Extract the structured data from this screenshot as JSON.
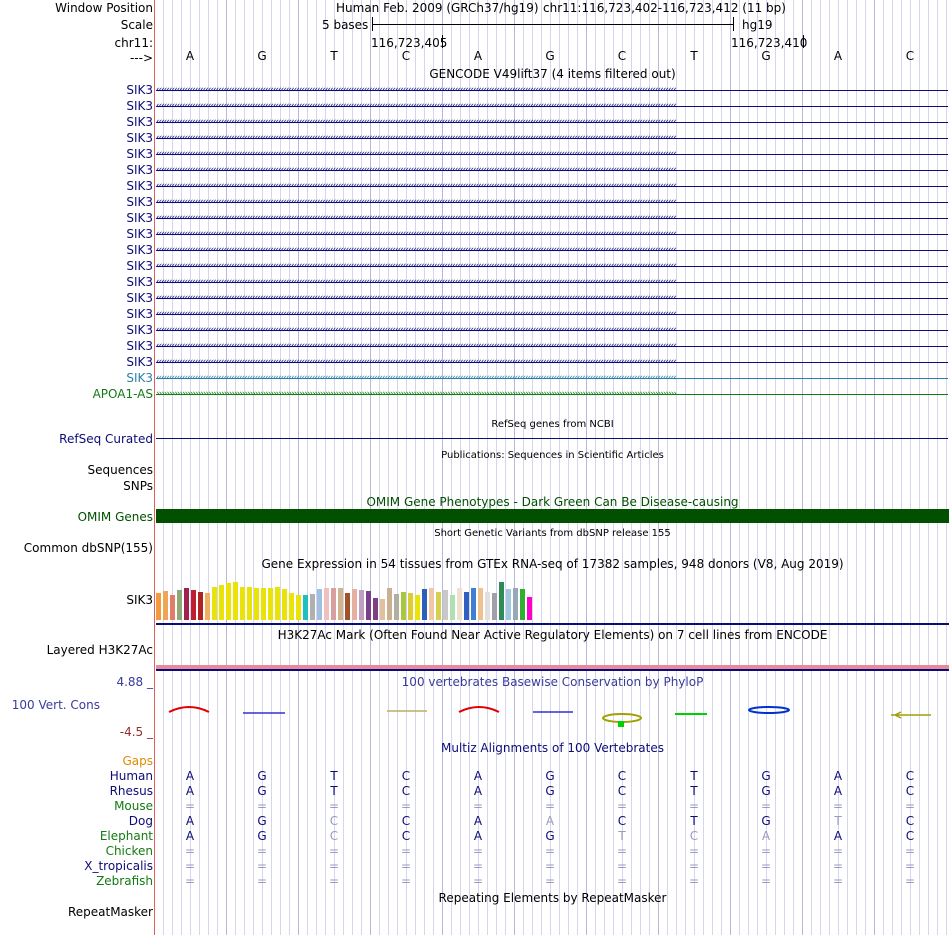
{
  "header": {
    "window_position_label": "Window Position",
    "scale_label": "Scale",
    "chrom_label": "chr11:",
    "strand_label": "--->",
    "assembly": "Human Feb. 2009 (GRCh37/hg19)",
    "position": "chr11:116,723,402-116,723,412 (11 bp)",
    "scale_text": "5 bases",
    "db": "hg19",
    "coord_left": "116,723,405",
    "coord_right": "116,723,410"
  },
  "bases": [
    "A",
    "G",
    "T",
    "C",
    "A",
    "G",
    "C",
    "T",
    "G",
    "A",
    "C"
  ],
  "gencode": {
    "title": "GENCODE V49lift37 (4 items filtered out)",
    "genes": [
      "SIK3",
      "SIK3",
      "SIK3",
      "SIK3",
      "SIK3",
      "SIK3",
      "SIK3",
      "SIK3",
      "SIK3",
      "SIK3",
      "SIK3",
      "SIK3",
      "SIK3",
      "SIK3",
      "SIK3",
      "SIK3",
      "SIK3",
      "SIK3",
      "SIK3"
    ],
    "apoa_gene": "APOA1-AS",
    "gene_color": "#0c0c78",
    "light_color": "#2b7fa8",
    "apoa_color": "#127a12"
  },
  "refseq": {
    "label": "RefSeq Curated",
    "title": "RefSeq genes from NCBI"
  },
  "publications": {
    "title": "Publications: Sequences in Scientific Articles",
    "label1": "Sequences",
    "label2": "SNPs"
  },
  "omim": {
    "title": "OMIM Gene Phenotypes - Dark Green Can Be Disease-causing",
    "label": "OMIM Genes",
    "color": "#005000"
  },
  "dbsnp": {
    "title": "Short Genetic Variants from dbSNP release 155",
    "label": "Common dbSNP(155)"
  },
  "gtex": {
    "title": "Gene Expression in 54 tissues from GTEx RNA-seq of 17382 samples, 948 donors (V8, Aug 2019)",
    "label": "SIK3",
    "levels": [
      0.56,
      0.6,
      0.52,
      0.62,
      0.65,
      0.62,
      0.57,
      0.56,
      0.68,
      0.72,
      0.75,
      0.78,
      0.68,
      0.67,
      0.66,
      0.66,
      0.66,
      0.67,
      0.64,
      0.55,
      0.52,
      0.52,
      0.54,
      0.63,
      0.66,
      0.66,
      0.65,
      0.55,
      0.64,
      0.62,
      0.6,
      0.44,
      0.42,
      0.66,
      0.54,
      0.57,
      0.56,
      0.52,
      0.64,
      0.66,
      0.57,
      0.62,
      0.52,
      0.66,
      0.58,
      0.65,
      0.66,
      0.57,
      0.56,
      0.78,
      0.63,
      0.66,
      0.63,
      0.47
    ],
    "colors": [
      "#f39a3c",
      "#f0a456",
      "#e07d6a",
      "#8ea878",
      "#a02050",
      "#be1e2d",
      "#b22222",
      "#f0b060",
      "#e9e30a",
      "#e9e30a",
      "#e9e30a",
      "#e9e30a",
      "#e9e30a",
      "#e9e30a",
      "#e9e30a",
      "#e9e30a",
      "#e9e30a",
      "#e9e30a",
      "#e9e30a",
      "#e9e30a",
      "#e9e30a",
      "#20c0c0",
      "#b0b0b0",
      "#a0c0e0",
      "#f0c0c0",
      "#d7a0a0",
      "#d2b48c",
      "#a0522d",
      "#e6b0a0",
      "#c0a0c0",
      "#7b3f8c",
      "#804080",
      "#e0c0a0",
      "#c8b090",
      "#b0b0a0",
      "#a8c840",
      "#ddcc33",
      "#e9e30a",
      "#2b5fb8",
      "#f0c8a8",
      "#d6d050",
      "#c8c8c8",
      "#b0e0b0",
      "#f0e0d0",
      "#3060c0",
      "#4080d0",
      "#f0c090",
      "#e0e0e0",
      "#a0a0a8",
      "#2e8b57",
      "#a0c8e0",
      "#98a8b8",
      "#30b030",
      "#ff00cc"
    ]
  },
  "h3k27ac": {
    "title": "H3K27Ac Mark (Often Found Near Active Regulatory Elements) on 7 cell lines from ENCODE",
    "label": "Layered H3K27Ac"
  },
  "phylop": {
    "title": "100 vertebrates Basewise Conservation by PhyloP",
    "label": "100 Vert. Cons",
    "max": "4.88 _",
    "min": "-4.5 _"
  },
  "multiz": {
    "title": "Multiz Alignments of 100 Vertebrates",
    "gaps_label": "Gaps",
    "species": [
      {
        "name": "Human",
        "color": "#0c0c78",
        "bases": [
          "A",
          "G",
          "T",
          "C",
          "A",
          "G",
          "C",
          "T",
          "G",
          "A",
          "C"
        ],
        "muted": []
      },
      {
        "name": "Rhesus",
        "color": "#0c0c78",
        "bases": [
          "A",
          "G",
          "T",
          "C",
          "A",
          "G",
          "C",
          "T",
          "G",
          "A",
          "C"
        ],
        "muted": []
      },
      {
        "name": "Mouse",
        "color": "#127a12",
        "bases": [
          "=",
          "=",
          "=",
          "=",
          "=",
          "=",
          "=",
          "=",
          "=",
          "=",
          "="
        ],
        "muted": [
          0,
          1,
          2,
          3,
          4,
          5,
          6,
          7,
          8,
          9,
          10
        ]
      },
      {
        "name": "Dog",
        "color": "#0c0c78",
        "bases": [
          "A",
          "G",
          "C",
          "C",
          "A",
          "A",
          "C",
          "T",
          "G",
          "T",
          "C"
        ],
        "muted": [
          2,
          5,
          9
        ]
      },
      {
        "name": "Elephant",
        "color": "#127a12",
        "bases": [
          "A",
          "G",
          "C",
          "C",
          "A",
          "G",
          "T",
          "C",
          "A",
          "A",
          "C"
        ],
        "muted": [
          2,
          6,
          7,
          8
        ]
      },
      {
        "name": "Chicken",
        "color": "#127a12",
        "bases": [
          "=",
          "=",
          "=",
          "=",
          "=",
          "=",
          "=",
          "=",
          "=",
          "=",
          "="
        ],
        "muted": [
          0,
          1,
          2,
          3,
          4,
          5,
          6,
          7,
          8,
          9,
          10
        ]
      },
      {
        "name": "X_tropicalis",
        "color": "#0c0c78",
        "bases": [
          "=",
          "=",
          "=",
          "=",
          "=",
          "=",
          "=",
          "=",
          "=",
          "=",
          "="
        ],
        "muted": [
          0,
          1,
          2,
          3,
          4,
          5,
          6,
          7,
          8,
          9,
          10
        ]
      },
      {
        "name": "Zebrafish",
        "color": "#127a12",
        "bases": [
          "=",
          "=",
          "=",
          "=",
          "=",
          "=",
          "=",
          "=",
          "=",
          "=",
          "="
        ],
        "muted": [
          0,
          1,
          2,
          3,
          4,
          5,
          6,
          7,
          8,
          9,
          10
        ]
      }
    ]
  },
  "repeatmasker": {
    "title": "Repeating Elements by RepeatMasker",
    "label": "RepeatMasker"
  }
}
